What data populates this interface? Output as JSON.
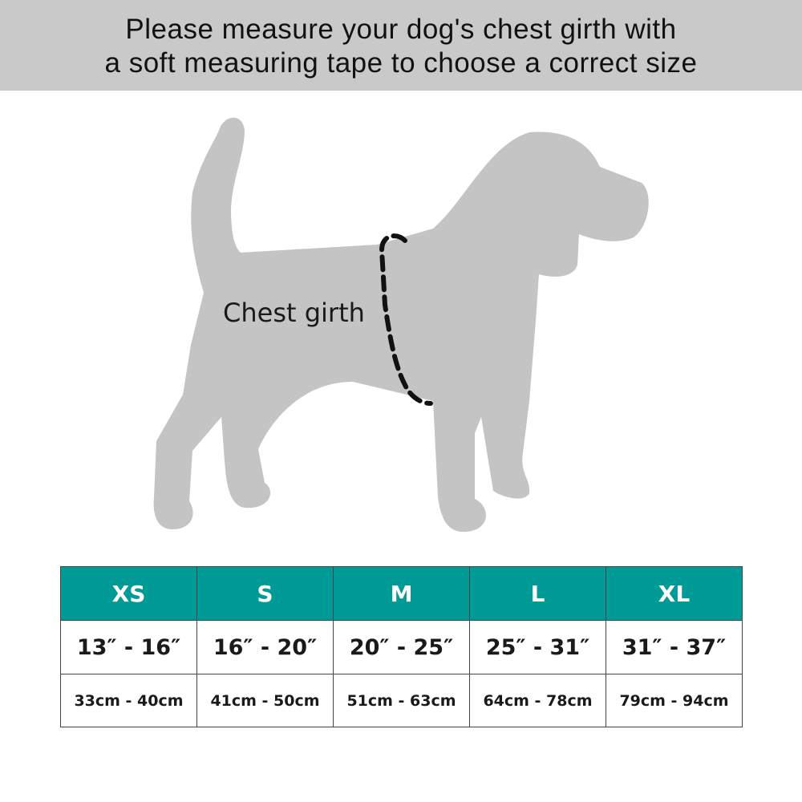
{
  "banner": {
    "line1": "Please measure your dog's chest girth with",
    "line2": "a soft measuring tape to choose a correct size"
  },
  "illustration": {
    "label": "Chest girth",
    "silhouette_color": "#c4c4c4"
  },
  "size_table": {
    "header_color": "#019b97",
    "sizes": [
      "XS",
      "S",
      "M",
      "L",
      "XL"
    ],
    "inches": [
      "13″ - 16″",
      "16″ - 20″",
      "20″ - 25″",
      "25″ - 31″",
      "31″ - 37″"
    ],
    "cm": [
      "33cm - 40cm",
      "41cm - 50cm",
      "51cm - 63cm",
      "64cm - 78cm",
      "79cm - 94cm"
    ]
  }
}
